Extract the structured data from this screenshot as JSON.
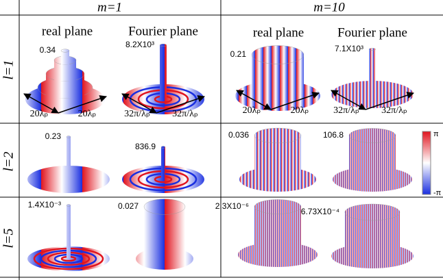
{
  "columns": [
    {
      "label": "m=1",
      "planes": [
        "real plane",
        "Fourier plane"
      ]
    },
    {
      "label": "m=10",
      "planes": [
        "real plane",
        "Fourier plane"
      ]
    }
  ],
  "rows": [
    {
      "label": "l=1",
      "peaks": [
        "0.34",
        "8.2X10³",
        "0.21",
        "7.1X10³"
      ],
      "axes": [
        "20λₚ",
        "20λₚ",
        "32π/λₚ",
        "32π/λₚ",
        "20λₚ",
        "20λₚ",
        "32π/λₚ",
        "32π/λₚ"
      ]
    },
    {
      "label": "l=2",
      "peaks": [
        "0.23",
        "836.9",
        "0.036",
        "106.8"
      ]
    },
    {
      "label": "l=5",
      "peaks": [
        "1.4X10⁻³",
        "0.027",
        "2.3X10⁻⁶",
        "6.73X10⁻⁴"
      ]
    }
  ],
  "colorbar": {
    "max_label": "π",
    "min_label": "-π"
  }
}
